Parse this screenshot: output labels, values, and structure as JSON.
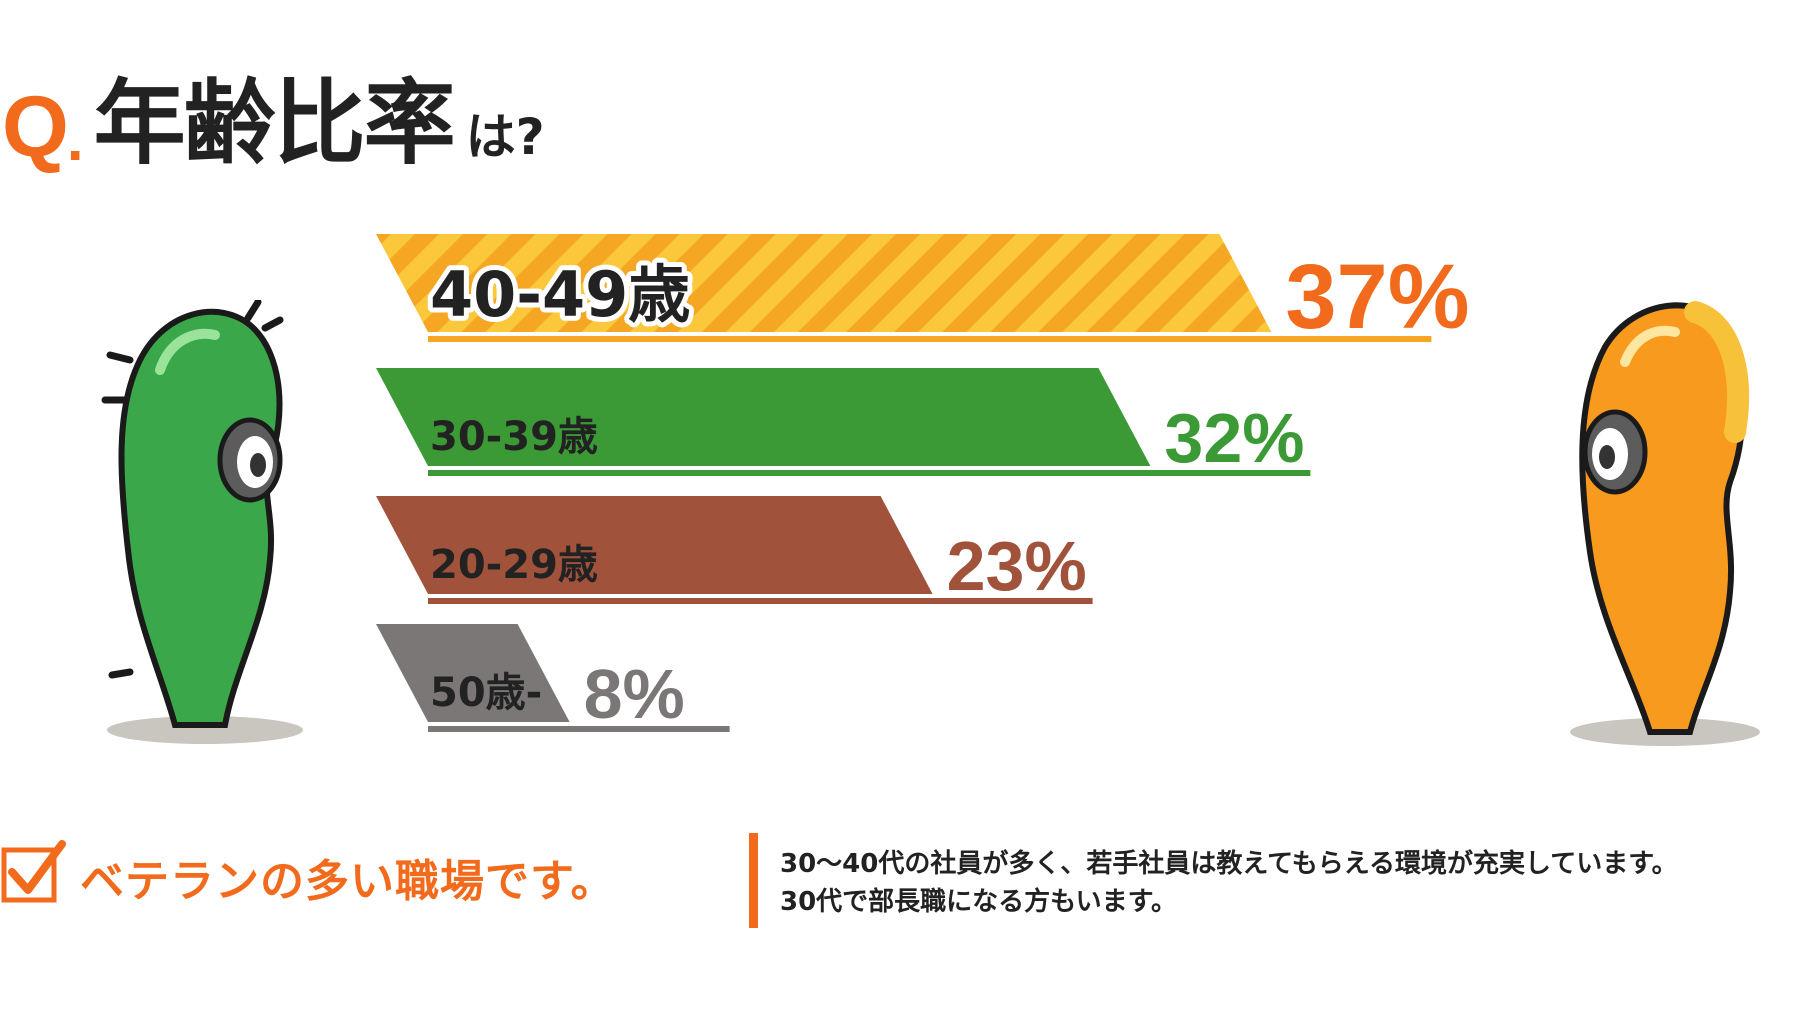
{
  "header": {
    "q_letter": "Q",
    "q_dot": ".",
    "title_main": "年齢比率",
    "title_suffix": "は?"
  },
  "chart_data": {
    "type": "bar",
    "orientation": "horizontal",
    "unit": "%",
    "categories": [
      "40-49歳",
      "30-39歳",
      "20-29歳",
      "50歳-"
    ],
    "values": [
      37,
      32,
      23,
      8
    ],
    "value_labels": [
      "37%",
      "32%",
      "23%",
      "8%"
    ],
    "colors": [
      "#f5a623",
      "#3b9a35",
      "#a0523a",
      "#7a7776"
    ],
    "accent_label_color": "#f26b1d",
    "highlighted_index": 0
  },
  "characters": {
    "left_color": "#39a642",
    "right_color": "#f79a1e"
  },
  "footer": {
    "check_icon": "checkbox-checked-icon",
    "headline": "ベテランの多い職場です。",
    "description_lines": [
      "30〜40代の社員が多く、若手社員は教えてもらえる環境が充実しています。",
      "30代で部長職になる方もいます。"
    ]
  }
}
